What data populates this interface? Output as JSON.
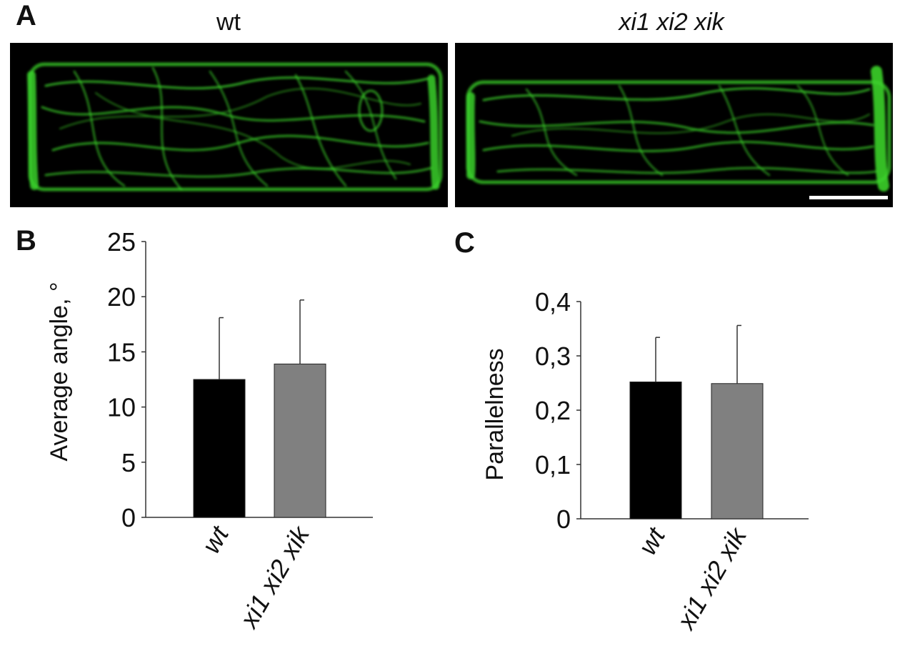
{
  "panel_a": {
    "label": "A",
    "images": [
      {
        "title": "wt",
        "italic": false
      },
      {
        "title": "xi1 xi2 xik",
        "italic": true
      }
    ],
    "colors": {
      "background": "#000000",
      "signal": "#3bd12a",
      "scale_bar": "#ffffff"
    }
  },
  "chart_data": [
    {
      "panel_label": "B",
      "type": "bar",
      "categories": [
        "wt",
        "xi1 xi2 xik"
      ],
      "values": [
        12.5,
        13.9
      ],
      "errors": [
        5.6,
        5.8
      ],
      "colors": [
        "#000000",
        "#808080"
      ],
      "ylabel": "Average angle, °",
      "ylim": [
        0,
        25
      ],
      "yticks": [
        0,
        5,
        10,
        15,
        20,
        25
      ],
      "ytick_labels": [
        "0",
        "5",
        "10",
        "15",
        "20",
        "25"
      ],
      "grid": false
    },
    {
      "panel_label": "C",
      "type": "bar",
      "categories": [
        "wt",
        "xi1 xi2 xik"
      ],
      "values": [
        0.252,
        0.249
      ],
      "errors": [
        0.082,
        0.107
      ],
      "colors": [
        "#000000",
        "#808080"
      ],
      "ylabel": "Parallelness",
      "ylim": [
        0,
        0.4
      ],
      "yticks": [
        0,
        0.1,
        0.2,
        0.3,
        0.4
      ],
      "ytick_labels": [
        "0",
        "0,1",
        "0,2",
        "0,3",
        "0,4"
      ],
      "grid": false
    }
  ]
}
